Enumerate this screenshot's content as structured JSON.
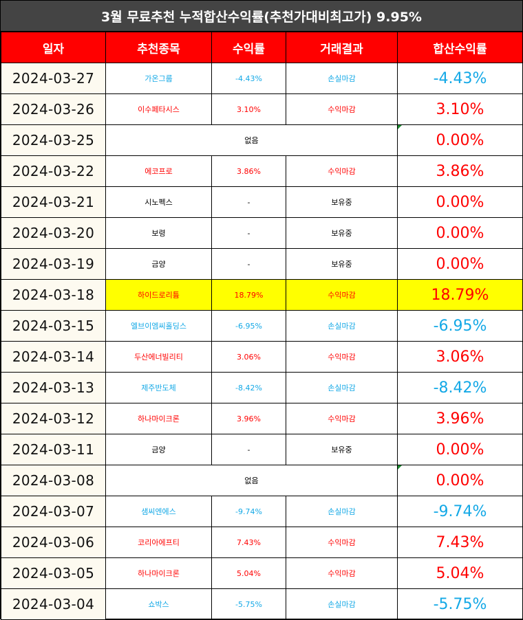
{
  "title": "3월 무료추천 누적합산수익률(추천가대비최고가) 9.95%",
  "headers": [
    "일자",
    "추천종목",
    "수익률",
    "거래결과",
    "합산수익률"
  ],
  "colors": {
    "header_bg": "#ff0000",
    "title_bg": "#444444",
    "profit": "#ff0000",
    "loss": "#13a8e6",
    "highlight": "#ffff00"
  },
  "rows": [
    {
      "date": "2024-03-27",
      "stock": "가온그룹",
      "ret": "-4.43%",
      "result": "손실마감",
      "total": "-4.43%",
      "tone": "blue"
    },
    {
      "date": "2024-03-26",
      "stock": "이수페타시스",
      "ret": "3.10%",
      "result": "수익마감",
      "total": "3.10%",
      "tone": "red"
    },
    {
      "date": "2024-03-25",
      "none": "없음",
      "total": "0.00%",
      "tone": "red"
    },
    {
      "date": "2024-03-22",
      "stock": "에코프로",
      "ret": "3.86%",
      "result": "수익마감",
      "total": "3.86%",
      "tone": "red"
    },
    {
      "date": "2024-03-21",
      "stock": "시노펙스",
      "ret": "-",
      "result": "보유중",
      "total": "0.00%",
      "tone": "black"
    },
    {
      "date": "2024-03-20",
      "stock": "보령",
      "ret": "-",
      "result": "보유중",
      "total": "0.00%",
      "tone": "black"
    },
    {
      "date": "2024-03-19",
      "stock": "금양",
      "ret": "-",
      "result": "보유중",
      "total": "0.00%",
      "tone": "black"
    },
    {
      "date": "2024-03-18",
      "stock": "하이드로리튬",
      "ret": "18.79%",
      "result": "수익마감",
      "total": "18.79%",
      "tone": "red",
      "highlight": true
    },
    {
      "date": "2024-03-15",
      "stock": "엘브이엠씨홀딩스",
      "ret": "-6.95%",
      "result": "손실마감",
      "total": "-6.95%",
      "tone": "blue"
    },
    {
      "date": "2024-03-14",
      "stock": "두산에너빌리티",
      "ret": "3.06%",
      "result": "수익마감",
      "total": "3.06%",
      "tone": "red"
    },
    {
      "date": "2024-03-13",
      "stock": "제주반도체",
      "ret": "-8.42%",
      "result": "손실마감",
      "total": "-8.42%",
      "tone": "blue"
    },
    {
      "date": "2024-03-12",
      "stock": "하나마이크론",
      "ret": "3.96%",
      "result": "수익마감",
      "total": "3.96%",
      "tone": "red"
    },
    {
      "date": "2024-03-11",
      "stock": "금양",
      "ret": "-",
      "result": "보유중",
      "total": "0.00%",
      "tone": "black"
    },
    {
      "date": "2024-03-08",
      "none": "없음",
      "total": "0.00%",
      "tone": "red"
    },
    {
      "date": "2024-03-07",
      "stock": "샘씨엔에스",
      "ret": "-9.74%",
      "result": "손실마감",
      "total": "-9.74%",
      "tone": "blue"
    },
    {
      "date": "2024-03-06",
      "stock": "코리아에프티",
      "ret": "7.43%",
      "result": "수익마감",
      "total": "7.43%",
      "tone": "red"
    },
    {
      "date": "2024-03-05",
      "stock": "하나마이크론",
      "ret": "5.04%",
      "result": "수익마감",
      "total": "5.04%",
      "tone": "red"
    },
    {
      "date": "2024-03-04",
      "stock": "쇼박스",
      "ret": "-5.75%",
      "result": "손실마감",
      "total": "-5.75%",
      "tone": "blue"
    }
  ]
}
